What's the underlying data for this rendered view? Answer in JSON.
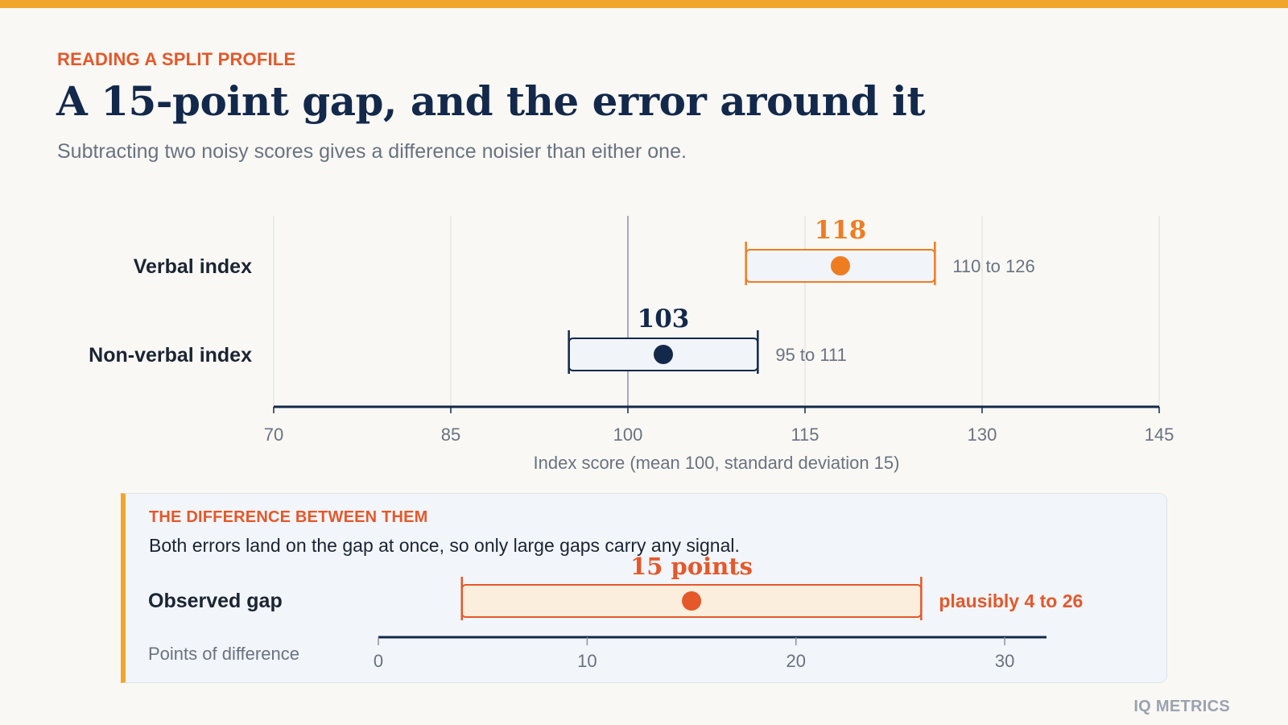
{
  "eyebrow": "READING A SPLIT PROFILE",
  "title": "A 15-point gap, and the error around it",
  "subtitle": "Subtracting two noisy scores gives a difference noisier than either one.",
  "chart_data": [
    {
      "type": "range",
      "xlabel": "Index score (mean 100, standard deviation 15)",
      "xlim": [
        70,
        145
      ],
      "ticks": [
        70,
        85,
        100,
        115,
        130,
        145
      ],
      "grid": true,
      "reference_line": 100,
      "series": [
        {
          "name": "Verbal index",
          "value": 118,
          "value_label": "118",
          "low": 110,
          "high": 126,
          "range_label": "110 to 126",
          "color": "#ee7d22",
          "fill": "#f1f4f8"
        },
        {
          "name": "Non-verbal index",
          "value": 103,
          "value_label": "103",
          "low": 95,
          "high": 111,
          "range_label": "95 to 111",
          "color": "#13294b",
          "fill": "#f1f4f8"
        }
      ]
    },
    {
      "type": "range",
      "xlabel": "Points of difference",
      "xlim": [
        0,
        32
      ],
      "ticks": [
        0,
        10,
        20,
        30
      ],
      "series": [
        {
          "name": "Observed gap",
          "value": 15,
          "value_label": "15 points",
          "low": 4,
          "high": 26,
          "range_label": "plausibly 4 to 26",
          "color": "#e4582a",
          "fill": "#fbeedc"
        }
      ]
    }
  ],
  "panel": {
    "eyebrow": "THE DIFFERENCE BETWEEN THEM",
    "body": "Both errors land on the gap at once, so only large gaps carry any signal."
  },
  "brand": "IQ METRICS",
  "colors": {
    "accent_bar": "#f2a52b",
    "accent_text": "#e4582a",
    "navy": "#13294b",
    "verbal": "#ee7d22",
    "gap": "#e4582a"
  }
}
